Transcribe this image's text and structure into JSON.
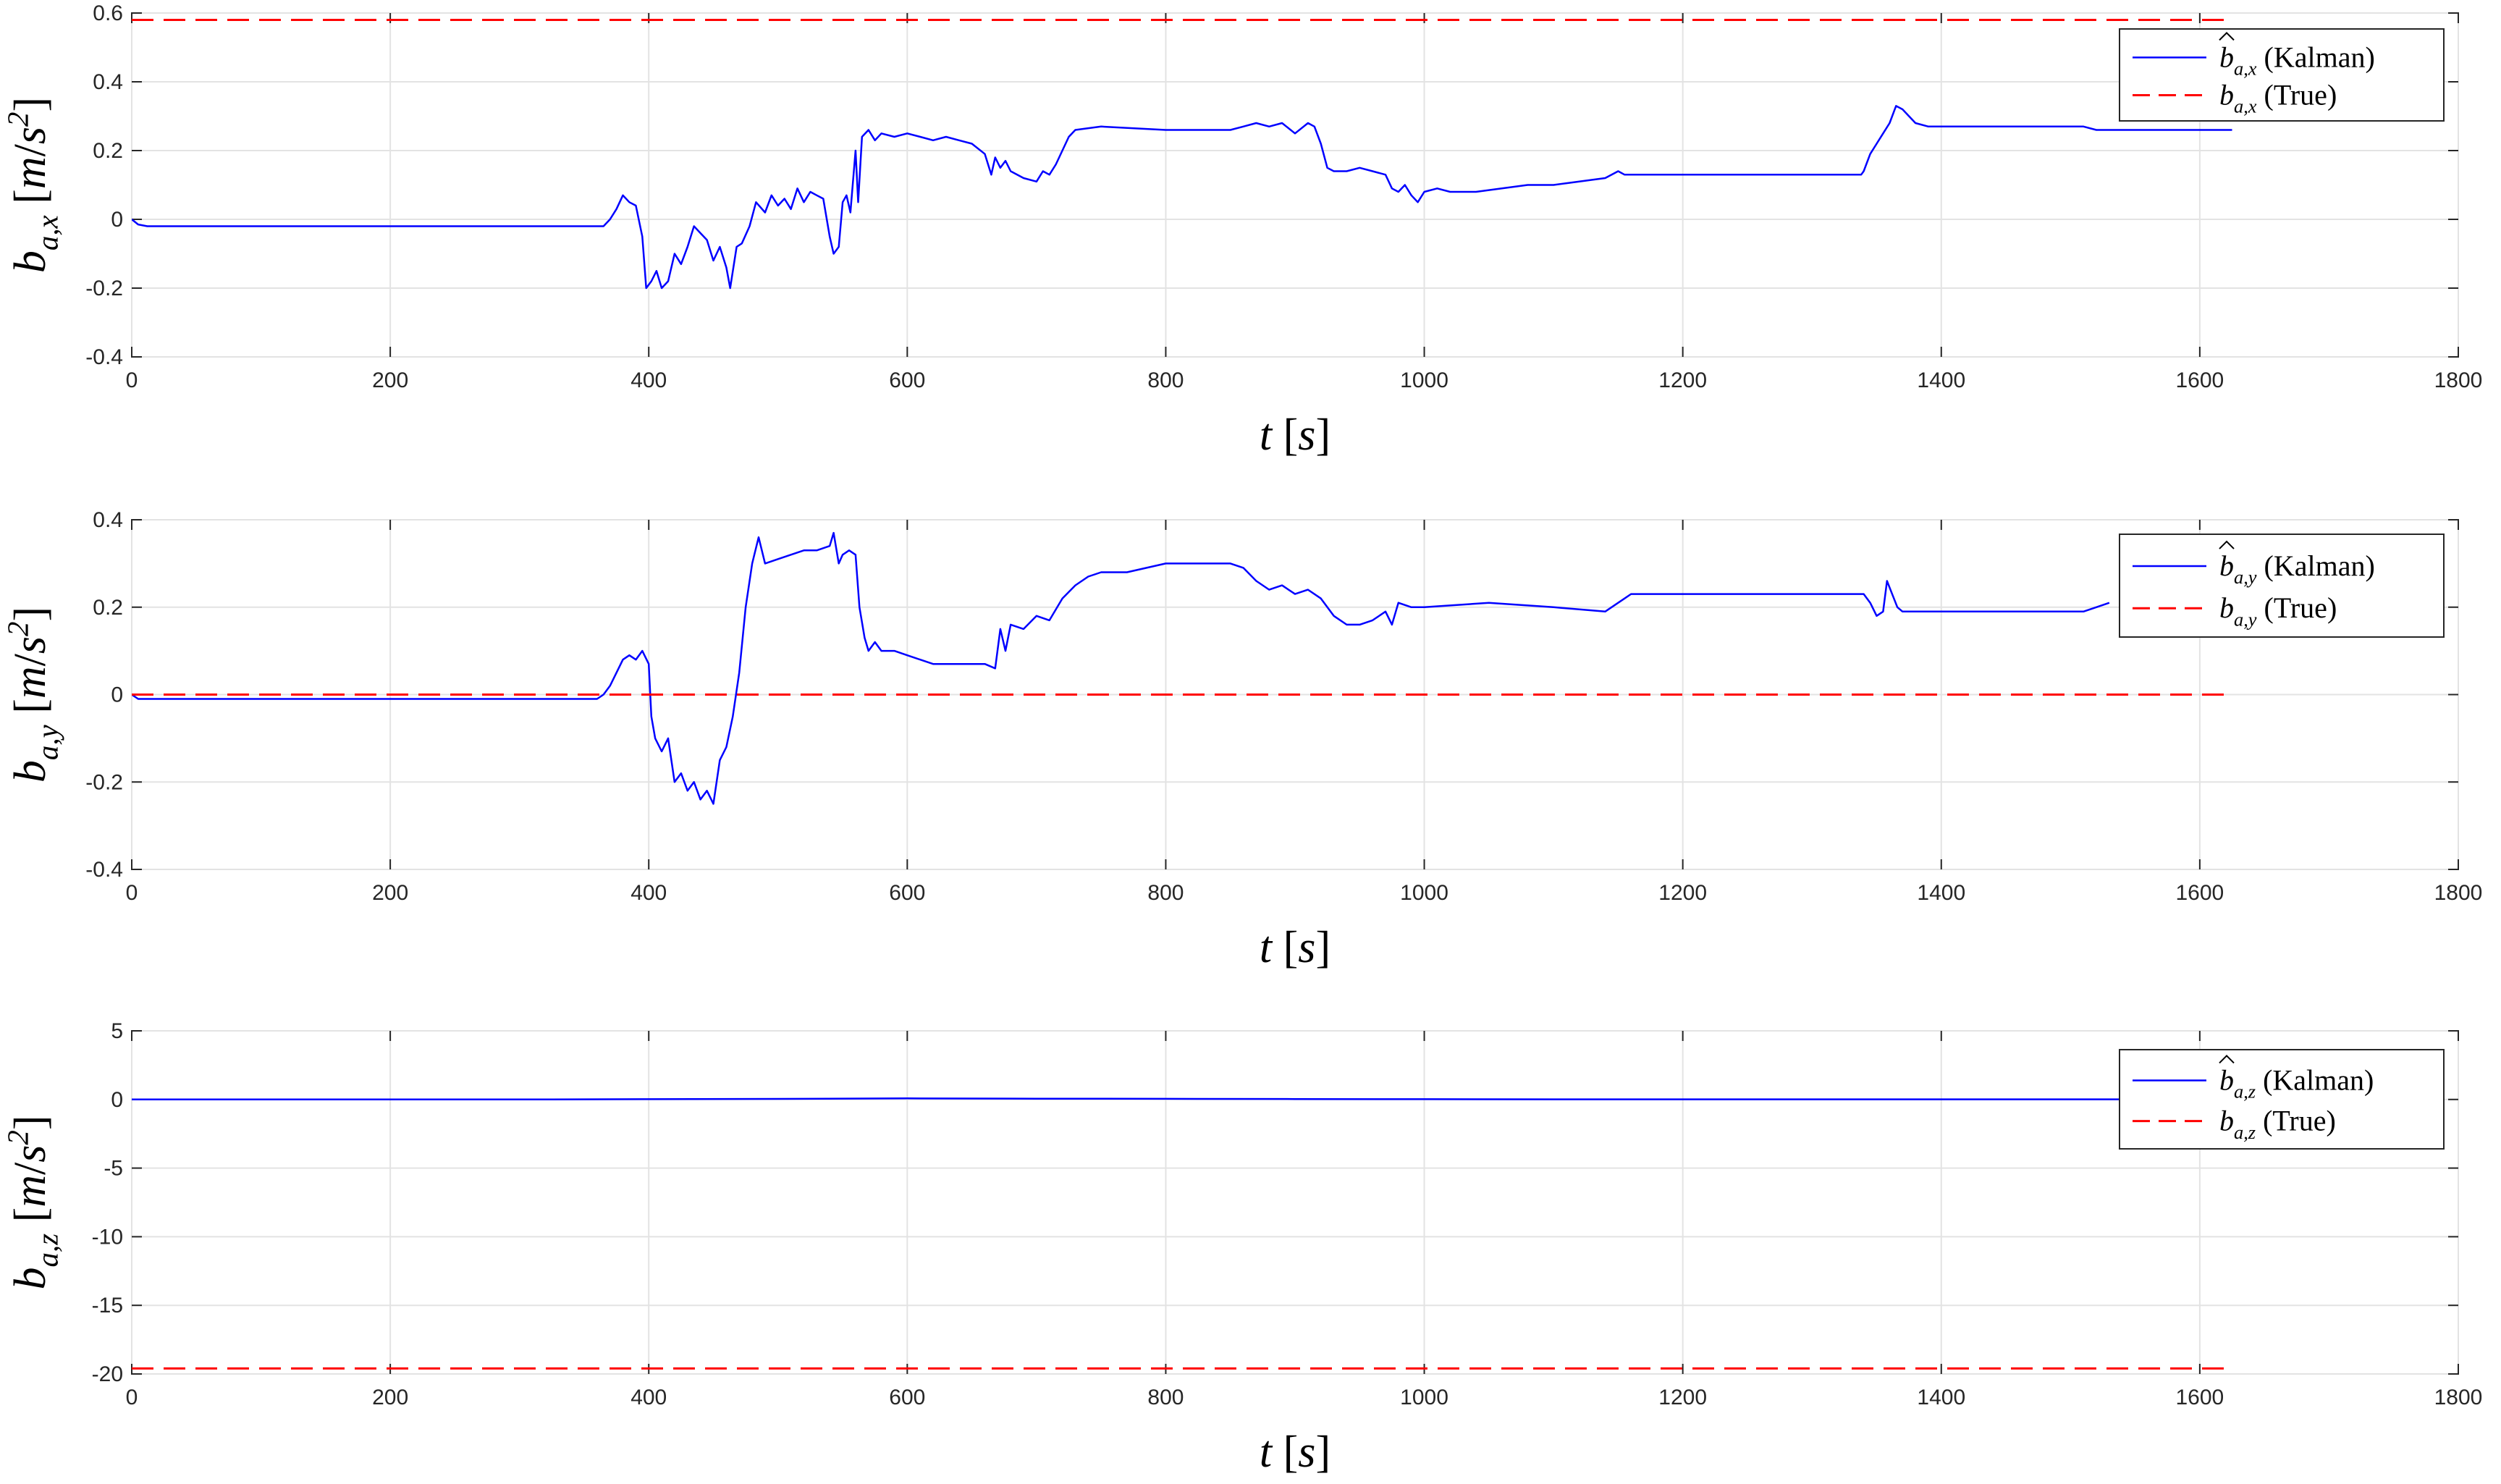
{
  "chart_data": [
    {
      "type": "line",
      "xlabel": "t [s]",
      "ylabel": "b_{a,x} [m/s^2]",
      "xlim": [
        0,
        1800
      ],
      "ylim": [
        -0.4,
        0.6
      ],
      "xticks": [
        "0",
        "200",
        "400",
        "600",
        "800",
        "1000",
        "1200",
        "1400",
        "1600",
        "1800"
      ],
      "yticks": [
        "-0.4",
        "-0.2",
        "0",
        "0.2",
        "0.4",
        "0.6"
      ],
      "grid": true,
      "legend_position": "top-right",
      "series": [
        {
          "name": "b̂_{a,x} (Kalman)",
          "color": "#0000ff",
          "style": "solid",
          "x": [
            0,
            5,
            12,
            100,
            200,
            300,
            360,
            365,
            370,
            375,
            380,
            385,
            390,
            395,
            398,
            402,
            406,
            410,
            415,
            420,
            425,
            430,
            435,
            440,
            445,
            450,
            455,
            460,
            463,
            468,
            472,
            478,
            483,
            490,
            495,
            500,
            505,
            510,
            515,
            520,
            525,
            530,
            535,
            540,
            543,
            547,
            550,
            553,
            556,
            560,
            562,
            565,
            570,
            575,
            580,
            590,
            600,
            610,
            620,
            630,
            640,
            650,
            660,
            665,
            668,
            672,
            676,
            680,
            690,
            700,
            705,
            710,
            715,
            720,
            725,
            730,
            750,
            800,
            850,
            860,
            870,
            880,
            890,
            900,
            910,
            915,
            920,
            925,
            930,
            940,
            950,
            960,
            970,
            975,
            980,
            985,
            990,
            995,
            1000,
            1010,
            1020,
            1040,
            1060,
            1080,
            1100,
            1120,
            1140,
            1150,
            1155,
            1160,
            1200,
            1250,
            1300,
            1338,
            1340,
            1345,
            1350,
            1355,
            1360,
            1365,
            1370,
            1380,
            1390,
            1400,
            1450,
            1500,
            1510,
            1520,
            1550,
            1600,
            1625
          ],
          "y": [
            0.0,
            -0.015,
            -0.02,
            -0.02,
            -0.02,
            -0.02,
            -0.02,
            -0.02,
            0.0,
            0.03,
            0.07,
            0.05,
            0.04,
            -0.05,
            -0.2,
            -0.18,
            -0.15,
            -0.2,
            -0.18,
            -0.1,
            -0.13,
            -0.08,
            -0.02,
            -0.04,
            -0.06,
            -0.12,
            -0.08,
            -0.14,
            -0.2,
            -0.08,
            -0.07,
            -0.02,
            0.05,
            0.02,
            0.07,
            0.04,
            0.06,
            0.03,
            0.09,
            0.05,
            0.08,
            0.07,
            0.06,
            -0.05,
            -0.1,
            -0.08,
            0.05,
            0.07,
            0.02,
            0.2,
            0.05,
            0.24,
            0.26,
            0.23,
            0.25,
            0.24,
            0.25,
            0.24,
            0.23,
            0.24,
            0.23,
            0.22,
            0.19,
            0.13,
            0.18,
            0.15,
            0.17,
            0.14,
            0.12,
            0.11,
            0.14,
            0.13,
            0.16,
            0.2,
            0.24,
            0.26,
            0.27,
            0.26,
            0.26,
            0.27,
            0.28,
            0.27,
            0.28,
            0.25,
            0.28,
            0.27,
            0.22,
            0.15,
            0.14,
            0.14,
            0.15,
            0.14,
            0.13,
            0.09,
            0.08,
            0.1,
            0.07,
            0.05,
            0.08,
            0.09,
            0.08,
            0.08,
            0.09,
            0.1,
            0.1,
            0.11,
            0.12,
            0.14,
            0.13,
            0.13,
            0.13,
            0.13,
            0.13,
            0.13,
            0.14,
            0.19,
            0.22,
            0.25,
            0.28,
            0.33,
            0.32,
            0.28,
            0.27,
            0.27,
            0.27,
            0.27,
            0.27,
            0.26,
            0.26,
            0.26,
            0.26
          ]
        },
        {
          "name": "b_{a,x} (True)",
          "color": "#ff0000",
          "style": "dashed",
          "x": [
            0,
            1625
          ],
          "y": [
            0.58,
            0.58
          ]
        }
      ]
    },
    {
      "type": "line",
      "xlabel": "t [s]",
      "ylabel": "b_{a,y} [m/s^2]",
      "xlim": [
        0,
        1800
      ],
      "ylim": [
        -0.4,
        0.4
      ],
      "xticks": [
        "0",
        "200",
        "400",
        "600",
        "800",
        "1000",
        "1200",
        "1400",
        "1600",
        "1800"
      ],
      "yticks": [
        "-0.4",
        "-0.2",
        "0",
        "0.2",
        "0.4"
      ],
      "grid": true,
      "legend_position": "top-right",
      "series": [
        {
          "name": "b̂_{a,y} (Kalman)",
          "color": "#0000ff",
          "style": "solid",
          "x": [
            0,
            5,
            12,
            100,
            200,
            300,
            360,
            365,
            370,
            375,
            380,
            385,
            390,
            395,
            400,
            402,
            405,
            410,
            415,
            420,
            425,
            430,
            435,
            440,
            445,
            450,
            455,
            460,
            465,
            470,
            475,
            480,
            485,
            490,
            500,
            510,
            520,
            530,
            540,
            543,
            547,
            550,
            555,
            560,
            563,
            567,
            570,
            575,
            580,
            590,
            600,
            610,
            620,
            640,
            660,
            668,
            672,
            676,
            680,
            690,
            700,
            710,
            720,
            730,
            740,
            750,
            770,
            800,
            850,
            860,
            870,
            880,
            890,
            900,
            910,
            920,
            930,
            940,
            950,
            960,
            970,
            975,
            980,
            990,
            1000,
            1050,
            1100,
            1140,
            1150,
            1155,
            1160,
            1200,
            1250,
            1300,
            1340,
            1345,
            1350,
            1355,
            1358,
            1362,
            1366,
            1370,
            1380,
            1400,
            1450,
            1500,
            1510,
            1520,
            1530
          ],
          "y": [
            0.0,
            -0.01,
            -0.01,
            -0.01,
            -0.01,
            -0.01,
            -0.01,
            0.0,
            0.02,
            0.05,
            0.08,
            0.09,
            0.08,
            0.1,
            0.07,
            -0.05,
            -0.1,
            -0.13,
            -0.1,
            -0.2,
            -0.18,
            -0.22,
            -0.2,
            -0.24,
            -0.22,
            -0.25,
            -0.15,
            -0.12,
            -0.05,
            0.05,
            0.2,
            0.3,
            0.36,
            0.3,
            0.31,
            0.32,
            0.33,
            0.33,
            0.34,
            0.37,
            0.3,
            0.32,
            0.33,
            0.32,
            0.2,
            0.13,
            0.1,
            0.12,
            0.1,
            0.1,
            0.09,
            0.08,
            0.07,
            0.07,
            0.07,
            0.06,
            0.15,
            0.1,
            0.16,
            0.15,
            0.18,
            0.17,
            0.22,
            0.25,
            0.27,
            0.28,
            0.28,
            0.3,
            0.3,
            0.29,
            0.26,
            0.24,
            0.25,
            0.23,
            0.24,
            0.22,
            0.18,
            0.16,
            0.16,
            0.17,
            0.19,
            0.16,
            0.21,
            0.2,
            0.2,
            0.21,
            0.2,
            0.19,
            0.21,
            0.22,
            0.23,
            0.23,
            0.23,
            0.23,
            0.23,
            0.21,
            0.18,
            0.19,
            0.26,
            0.23,
            0.2,
            0.19,
            0.19,
            0.19,
            0.19,
            0.19,
            0.19,
            0.2,
            0.21
          ]
        },
        {
          "name": "b_{a,y} (True)",
          "color": "#ff0000",
          "style": "dashed",
          "x": [
            0,
            1625
          ],
          "y": [
            0.0,
            0.0
          ]
        }
      ]
    },
    {
      "type": "line",
      "xlabel": "t [s]",
      "ylabel": "b_{a,z} [m/s^2]",
      "xlim": [
        0,
        1800
      ],
      "ylim": [
        -20,
        5
      ],
      "xticks": [
        "0",
        "200",
        "400",
        "600",
        "800",
        "1000",
        "1200",
        "1400",
        "1600",
        "1800"
      ],
      "yticks": [
        "-20",
        "-15",
        "-10",
        "-5",
        "0",
        "5"
      ],
      "grid": true,
      "legend_position": "top-right",
      "series": [
        {
          "name": "b̂_{a,z} (Kalman)",
          "color": "#0000ff",
          "style": "solid",
          "x": [
            0,
            100,
            200,
            300,
            400,
            500,
            600,
            700,
            800,
            900,
            1000,
            1100,
            1200,
            1300,
            1400,
            1500,
            1625
          ],
          "y": [
            0.0,
            0.0,
            0.0,
            0.0,
            0.02,
            0.04,
            0.08,
            0.06,
            0.05,
            0.03,
            0.02,
            0.01,
            0.01,
            0.01,
            0.01,
            0.01,
            0.01
          ]
        },
        {
          "name": "b_{a,z} (True)",
          "color": "#ff0000",
          "style": "dashed",
          "x": [
            0,
            1625
          ],
          "y": [
            -19.6,
            -19.6
          ]
        }
      ]
    }
  ]
}
